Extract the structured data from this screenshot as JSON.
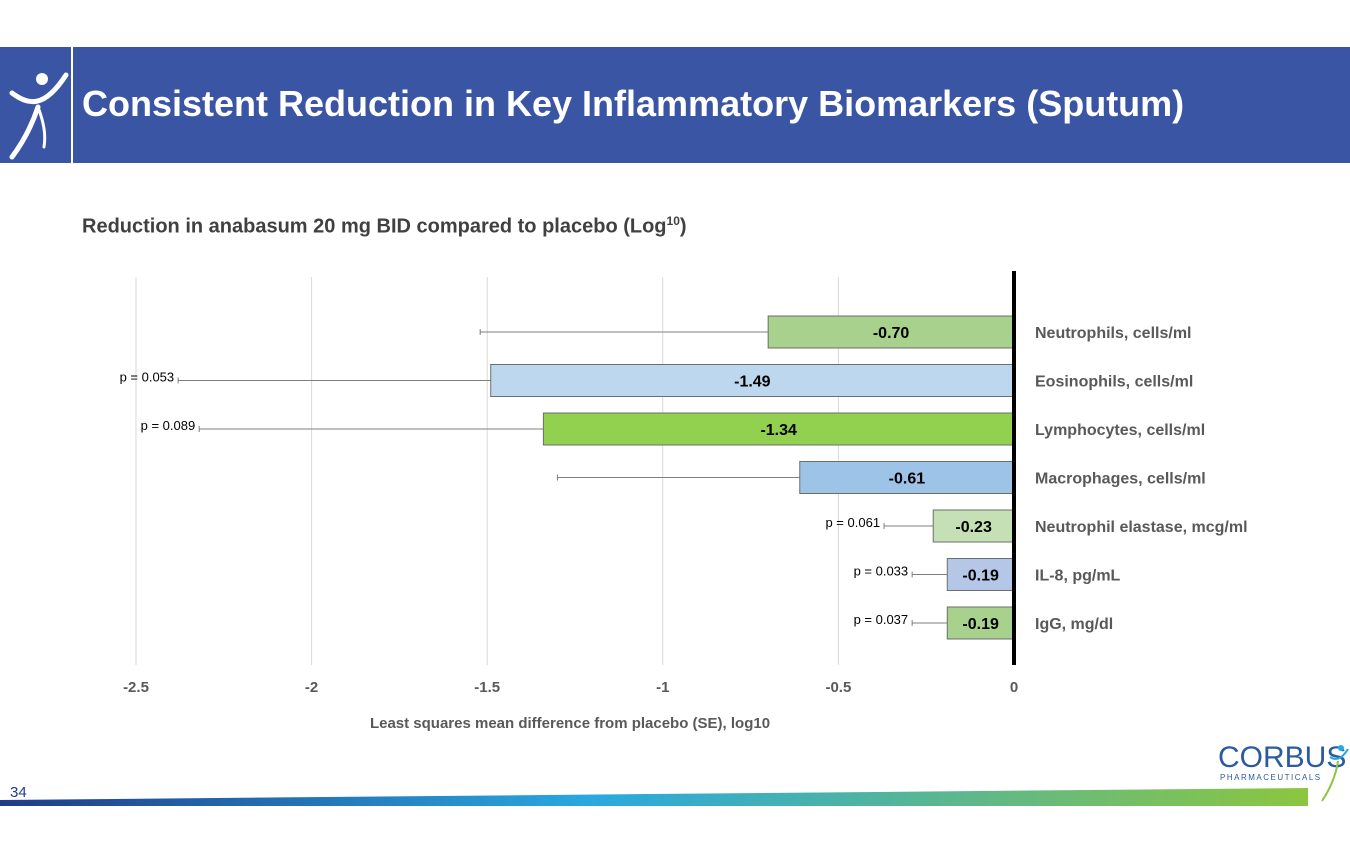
{
  "header": {
    "title": "Consistent Reduction in Key Inflammatory Biomarkers (Sputum)",
    "subtitle_main": "Reduction in anabasum 20 mg BID compared to placebo (Log",
    "subtitle_sup": "10",
    "subtitle_end": ")"
  },
  "page_number": "34",
  "brand": {
    "name": "CORBUS",
    "tagline": "PHARMACEUTICALS",
    "banner_color": "#3a55a4"
  },
  "chart_data": {
    "type": "bar",
    "orientation": "horizontal",
    "xlabel": "Least squares mean difference from placebo (SE), log10",
    "xlim": [
      -2.5,
      0
    ],
    "xticks": [
      "-2.5",
      "-2",
      "-1.5",
      "-1",
      "-0.5",
      "0"
    ],
    "grid": true,
    "categories": [
      "Neutrophils, cells/ml",
      "Eosinophils, cells/ml",
      "Lymphocytes, cells/ml",
      "Macrophages, cells/ml",
      "Neutrophil elastase, mcg/ml",
      "IL-8, pg/mL",
      "IgG, mg/dl"
    ],
    "values": [
      -0.7,
      -1.49,
      -1.34,
      -0.61,
      -0.23,
      -0.19,
      -0.19
    ],
    "value_labels": [
      "-0.70",
      "-1.49",
      "-1.34",
      "-0.61",
      "-0.23",
      "-0.19",
      "-0.19"
    ],
    "error_low": [
      -1.52,
      -2.38,
      -2.32,
      -1.3,
      -0.37,
      -0.29,
      -0.29
    ],
    "p_values": [
      "",
      "p = 0.053",
      "p = 0.089",
      "",
      "p = 0.061",
      "p = 0.033",
      "p = 0.037"
    ],
    "colors": [
      "#a9d18e",
      "#bdd7ee",
      "#92d050",
      "#9dc3e6",
      "#c5e0b4",
      "#b4c7e7",
      "#a9d18e"
    ]
  }
}
